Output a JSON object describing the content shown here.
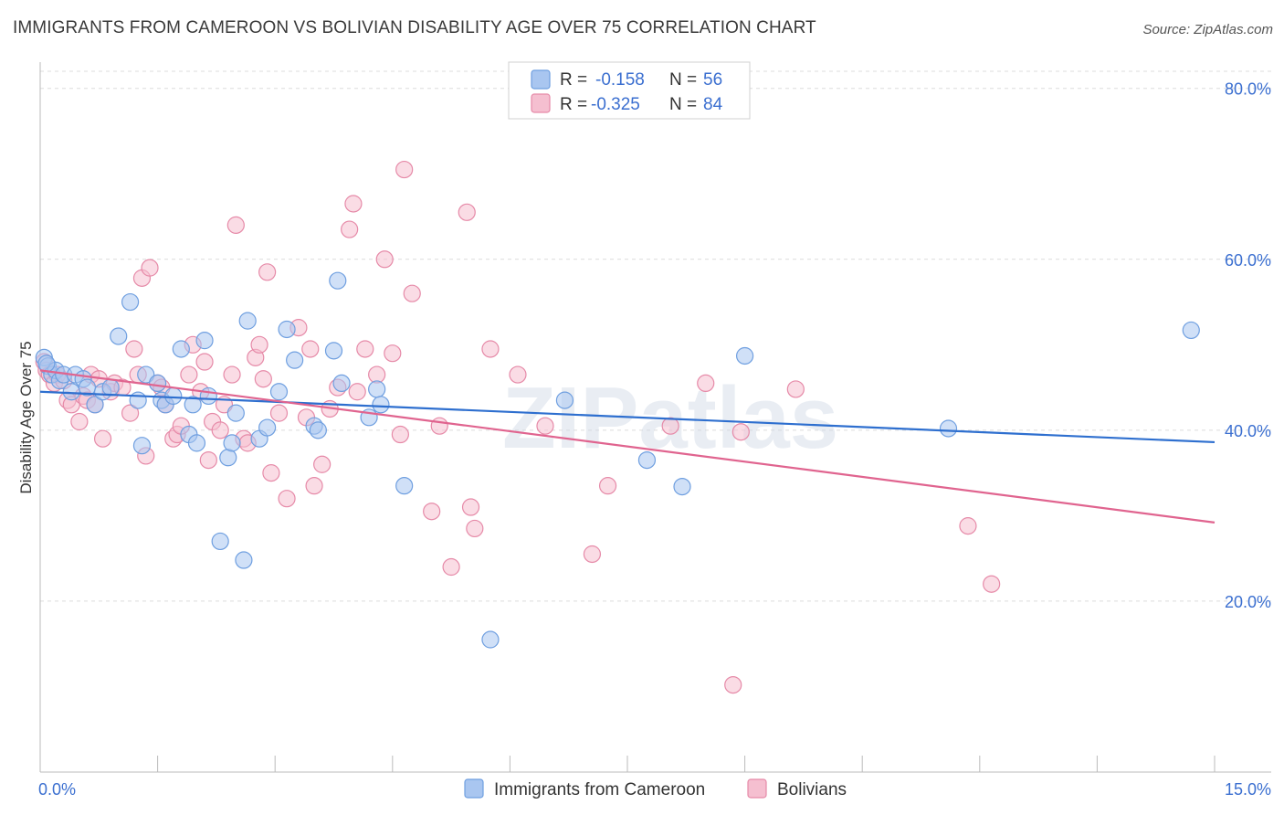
{
  "title": "IMMIGRANTS FROM CAMEROON VS BOLIVIAN DISABILITY AGE OVER 75 CORRELATION CHART",
  "source": "Source: ZipAtlas.com",
  "watermark": "ZIPatlas",
  "colors": {
    "blue": "#6f9fe0",
    "blue_fill": "#a9c6f0",
    "blue_line": "#2e6fcf",
    "pink": "#e68aa8",
    "pink_fill": "#f5bfd0",
    "pink_line": "#e0648f",
    "grid": "#dcdcdc",
    "axis_label": "#3b6fd0"
  },
  "legend": {
    "rows": [
      {
        "r_label": "R =",
        "r_value": "-0.158",
        "n_label": "N =",
        "n_value": "56"
      },
      {
        "r_label": "R =",
        "r_value": "-0.325",
        "n_label": "N =",
        "n_value": "84"
      }
    ]
  },
  "bottom_legend": [
    "Immigrants from Cameroon",
    "Bolivians"
  ],
  "chart_data": {
    "type": "scatter",
    "title": "IMMIGRANTS FROM CAMEROON VS BOLIVIAN DISABILITY AGE OVER 75 CORRELATION CHART",
    "xlabel": "",
    "ylabel": "Disability Age Over 75",
    "xlim": [
      0,
      15
    ],
    "ylim": [
      0,
      82
    ],
    "x_tick_labels": [
      "0.0%",
      "15.0%"
    ],
    "y_ticks": [
      20,
      40,
      60,
      80
    ],
    "y_tick_labels": [
      "20.0%",
      "40.0%",
      "60.0%",
      "80.0%"
    ],
    "grid": true,
    "legend_position": "top-center",
    "series": [
      {
        "name": "Immigrants from Cameroon",
        "r": -0.158,
        "n": 56,
        "trend": {
          "x": [
            0,
            15
          ],
          "y": [
            44.5,
            38.6
          ]
        },
        "points": [
          [
            0.05,
            48.5
          ],
          [
            0.1,
            47.5
          ],
          [
            0.15,
            46.5
          ],
          [
            0.2,
            47.0
          ],
          [
            0.25,
            45.8
          ],
          [
            0.3,
            46.5
          ],
          [
            0.4,
            44.5
          ],
          [
            0.45,
            46.5
          ],
          [
            0.55,
            46.0
          ],
          [
            0.6,
            45.0
          ],
          [
            0.7,
            43.0
          ],
          [
            0.8,
            44.5
          ],
          [
            0.9,
            45.0
          ],
          [
            1.0,
            51.0
          ],
          [
            1.15,
            55.0
          ],
          [
            1.25,
            43.5
          ],
          [
            1.3,
            38.2
          ],
          [
            1.35,
            46.5
          ],
          [
            1.5,
            45.5
          ],
          [
            1.55,
            43.5
          ],
          [
            1.6,
            43.0
          ],
          [
            1.7,
            44.0
          ],
          [
            1.8,
            49.5
          ],
          [
            1.9,
            39.5
          ],
          [
            1.95,
            43.0
          ],
          [
            2.0,
            38.5
          ],
          [
            2.1,
            50.5
          ],
          [
            2.15,
            44.0
          ],
          [
            2.3,
            27.0
          ],
          [
            2.4,
            36.8
          ],
          [
            2.45,
            38.5
          ],
          [
            2.5,
            42.0
          ],
          [
            2.6,
            24.8
          ],
          [
            2.65,
            52.8
          ],
          [
            2.8,
            39.0
          ],
          [
            2.9,
            40.3
          ],
          [
            3.05,
            44.5
          ],
          [
            3.15,
            51.8
          ],
          [
            3.25,
            48.2
          ],
          [
            3.5,
            40.5
          ],
          [
            3.55,
            40.0
          ],
          [
            3.75,
            49.3
          ],
          [
            3.8,
            57.5
          ],
          [
            3.85,
            45.5
          ],
          [
            4.2,
            41.5
          ],
          [
            4.3,
            44.8
          ],
          [
            4.35,
            43.0
          ],
          [
            4.65,
            33.5
          ],
          [
            5.75,
            15.5
          ],
          [
            6.7,
            43.5
          ],
          [
            7.75,
            36.5
          ],
          [
            8.2,
            33.4
          ],
          [
            9.0,
            48.7
          ],
          [
            11.6,
            40.2
          ],
          [
            14.7,
            51.7
          ],
          [
            0.08,
            47.8
          ]
        ]
      },
      {
        "name": "Bolivians",
        "r": -0.325,
        "n": 84,
        "trend": {
          "x": [
            0,
            15
          ],
          "y": [
            47.0,
            29.2
          ]
        },
        "points": [
          [
            0.05,
            48.0
          ],
          [
            0.08,
            47.0
          ],
          [
            0.12,
            46.5
          ],
          [
            0.18,
            45.5
          ],
          [
            0.22,
            46.5
          ],
          [
            0.3,
            45.8
          ],
          [
            0.35,
            43.5
          ],
          [
            0.4,
            43.0
          ],
          [
            0.5,
            41.0
          ],
          [
            0.55,
            44.0
          ],
          [
            0.6,
            43.5
          ],
          [
            0.65,
            46.5
          ],
          [
            0.7,
            43.0
          ],
          [
            0.75,
            46.0
          ],
          [
            0.8,
            39.0
          ],
          [
            0.9,
            44.5
          ],
          [
            0.95,
            45.5
          ],
          [
            1.05,
            45.0
          ],
          [
            1.15,
            42.0
          ],
          [
            1.2,
            49.5
          ],
          [
            1.3,
            57.8
          ],
          [
            1.35,
            37.0
          ],
          [
            1.4,
            59.0
          ],
          [
            1.5,
            45.5
          ],
          [
            1.55,
            45.0
          ],
          [
            1.6,
            43.0
          ],
          [
            1.7,
            39.0
          ],
          [
            1.75,
            39.5
          ],
          [
            1.8,
            40.5
          ],
          [
            1.9,
            46.5
          ],
          [
            1.95,
            50.0
          ],
          [
            2.05,
            44.5
          ],
          [
            2.1,
            48.0
          ],
          [
            2.15,
            36.5
          ],
          [
            2.2,
            41.0
          ],
          [
            2.3,
            40.0
          ],
          [
            2.35,
            43.0
          ],
          [
            2.45,
            46.5
          ],
          [
            2.5,
            64.0
          ],
          [
            2.6,
            39.0
          ],
          [
            2.65,
            38.5
          ],
          [
            2.75,
            48.5
          ],
          [
            2.8,
            50.0
          ],
          [
            2.85,
            46.0
          ],
          [
            2.9,
            58.5
          ],
          [
            2.95,
            35.0
          ],
          [
            3.05,
            42.0
          ],
          [
            3.15,
            32.0
          ],
          [
            3.3,
            52.0
          ],
          [
            3.4,
            41.5
          ],
          [
            3.45,
            49.5
          ],
          [
            3.5,
            33.5
          ],
          [
            3.6,
            36.0
          ],
          [
            3.7,
            42.5
          ],
          [
            3.8,
            45.0
          ],
          [
            3.95,
            63.5
          ],
          [
            4.0,
            66.5
          ],
          [
            4.05,
            44.5
          ],
          [
            4.15,
            49.5
          ],
          [
            4.3,
            46.5
          ],
          [
            4.4,
            60.0
          ],
          [
            4.5,
            49.0
          ],
          [
            4.6,
            39.5
          ],
          [
            4.65,
            70.5
          ],
          [
            4.75,
            56.0
          ],
          [
            5.0,
            30.5
          ],
          [
            5.1,
            40.5
          ],
          [
            5.25,
            24.0
          ],
          [
            5.45,
            65.5
          ],
          [
            5.5,
            31.0
          ],
          [
            5.55,
            28.5
          ],
          [
            5.75,
            49.5
          ],
          [
            6.1,
            46.5
          ],
          [
            6.45,
            40.5
          ],
          [
            7.05,
            25.5
          ],
          [
            7.25,
            33.5
          ],
          [
            8.05,
            40.5
          ],
          [
            8.5,
            45.5
          ],
          [
            8.85,
            10.2
          ],
          [
            8.95,
            39.8
          ],
          [
            9.65,
            44.8
          ],
          [
            11.85,
            28.8
          ],
          [
            12.15,
            22.0
          ],
          [
            1.25,
            46.5
          ]
        ]
      }
    ]
  }
}
